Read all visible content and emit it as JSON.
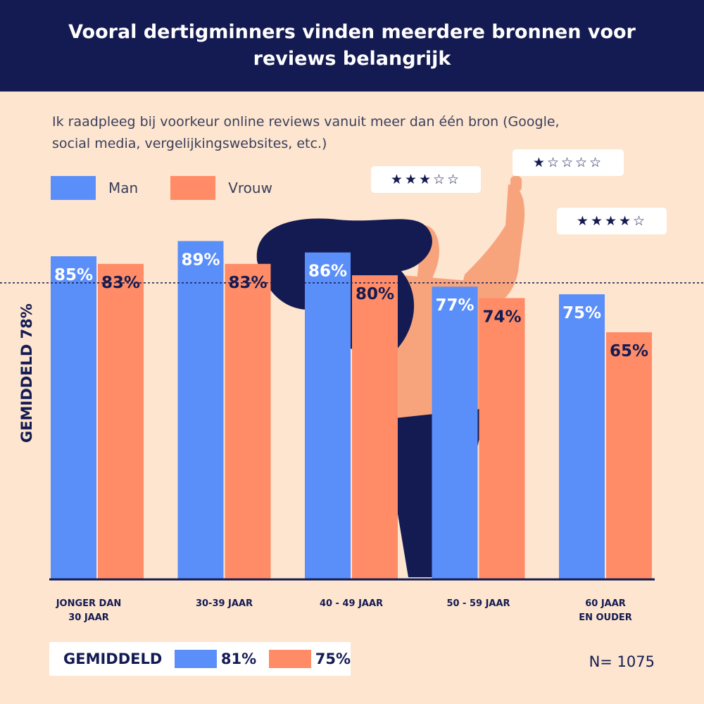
{
  "header": {
    "title": "Vooral dertigminners vinden meerdere bronnen voor reviews belangrijk"
  },
  "subtitle": "Ik raadpleeg bij voorkeur online reviews vanuit meer dan één bron (Google, social media, vergelijkingswebsites, etc.)",
  "legend": {
    "man_label": "Man",
    "vrouw_label": "Vrouw"
  },
  "colors": {
    "man": "#5a8ffa",
    "vrouw": "#ff8c66",
    "navy": "#141b52",
    "background": "#fde5cf"
  },
  "ratings": {
    "r1": "★★★☆☆",
    "r2": "★☆☆☆☆",
    "r3": "★★★★☆"
  },
  "average_line_label": "GEMIDDELD   78%",
  "bottom": {
    "title": "GEMIDDELD",
    "man_value": "81%",
    "vrouw_value": "75%"
  },
  "n_label": "N= 1075",
  "chart_data": {
    "type": "bar",
    "categories": [
      [
        "JONGER DAN",
        "30 JAAR"
      ],
      [
        "30-39 JAAR"
      ],
      [
        "40 - 49 JAAR"
      ],
      [
        "50 - 59 JAAR"
      ],
      [
        "60 JAAR",
        "EN  OUDER"
      ]
    ],
    "series": [
      {
        "name": "Man",
        "values": [
          85,
          89,
          86,
          77,
          75
        ],
        "labels": [
          "85%",
          "89%",
          "86%",
          "77%",
          "75%"
        ]
      },
      {
        "name": "Vrouw",
        "values": [
          83,
          83,
          80,
          74,
          65
        ],
        "labels": [
          "83%",
          "83%",
          "80%",
          "74%",
          "65%"
        ]
      }
    ],
    "average": 78,
    "average_by_series": {
      "Man": 81,
      "Vrouw": 75
    },
    "ylim": [
      0,
      100
    ],
    "grid": false,
    "legend_position": "top-left"
  }
}
